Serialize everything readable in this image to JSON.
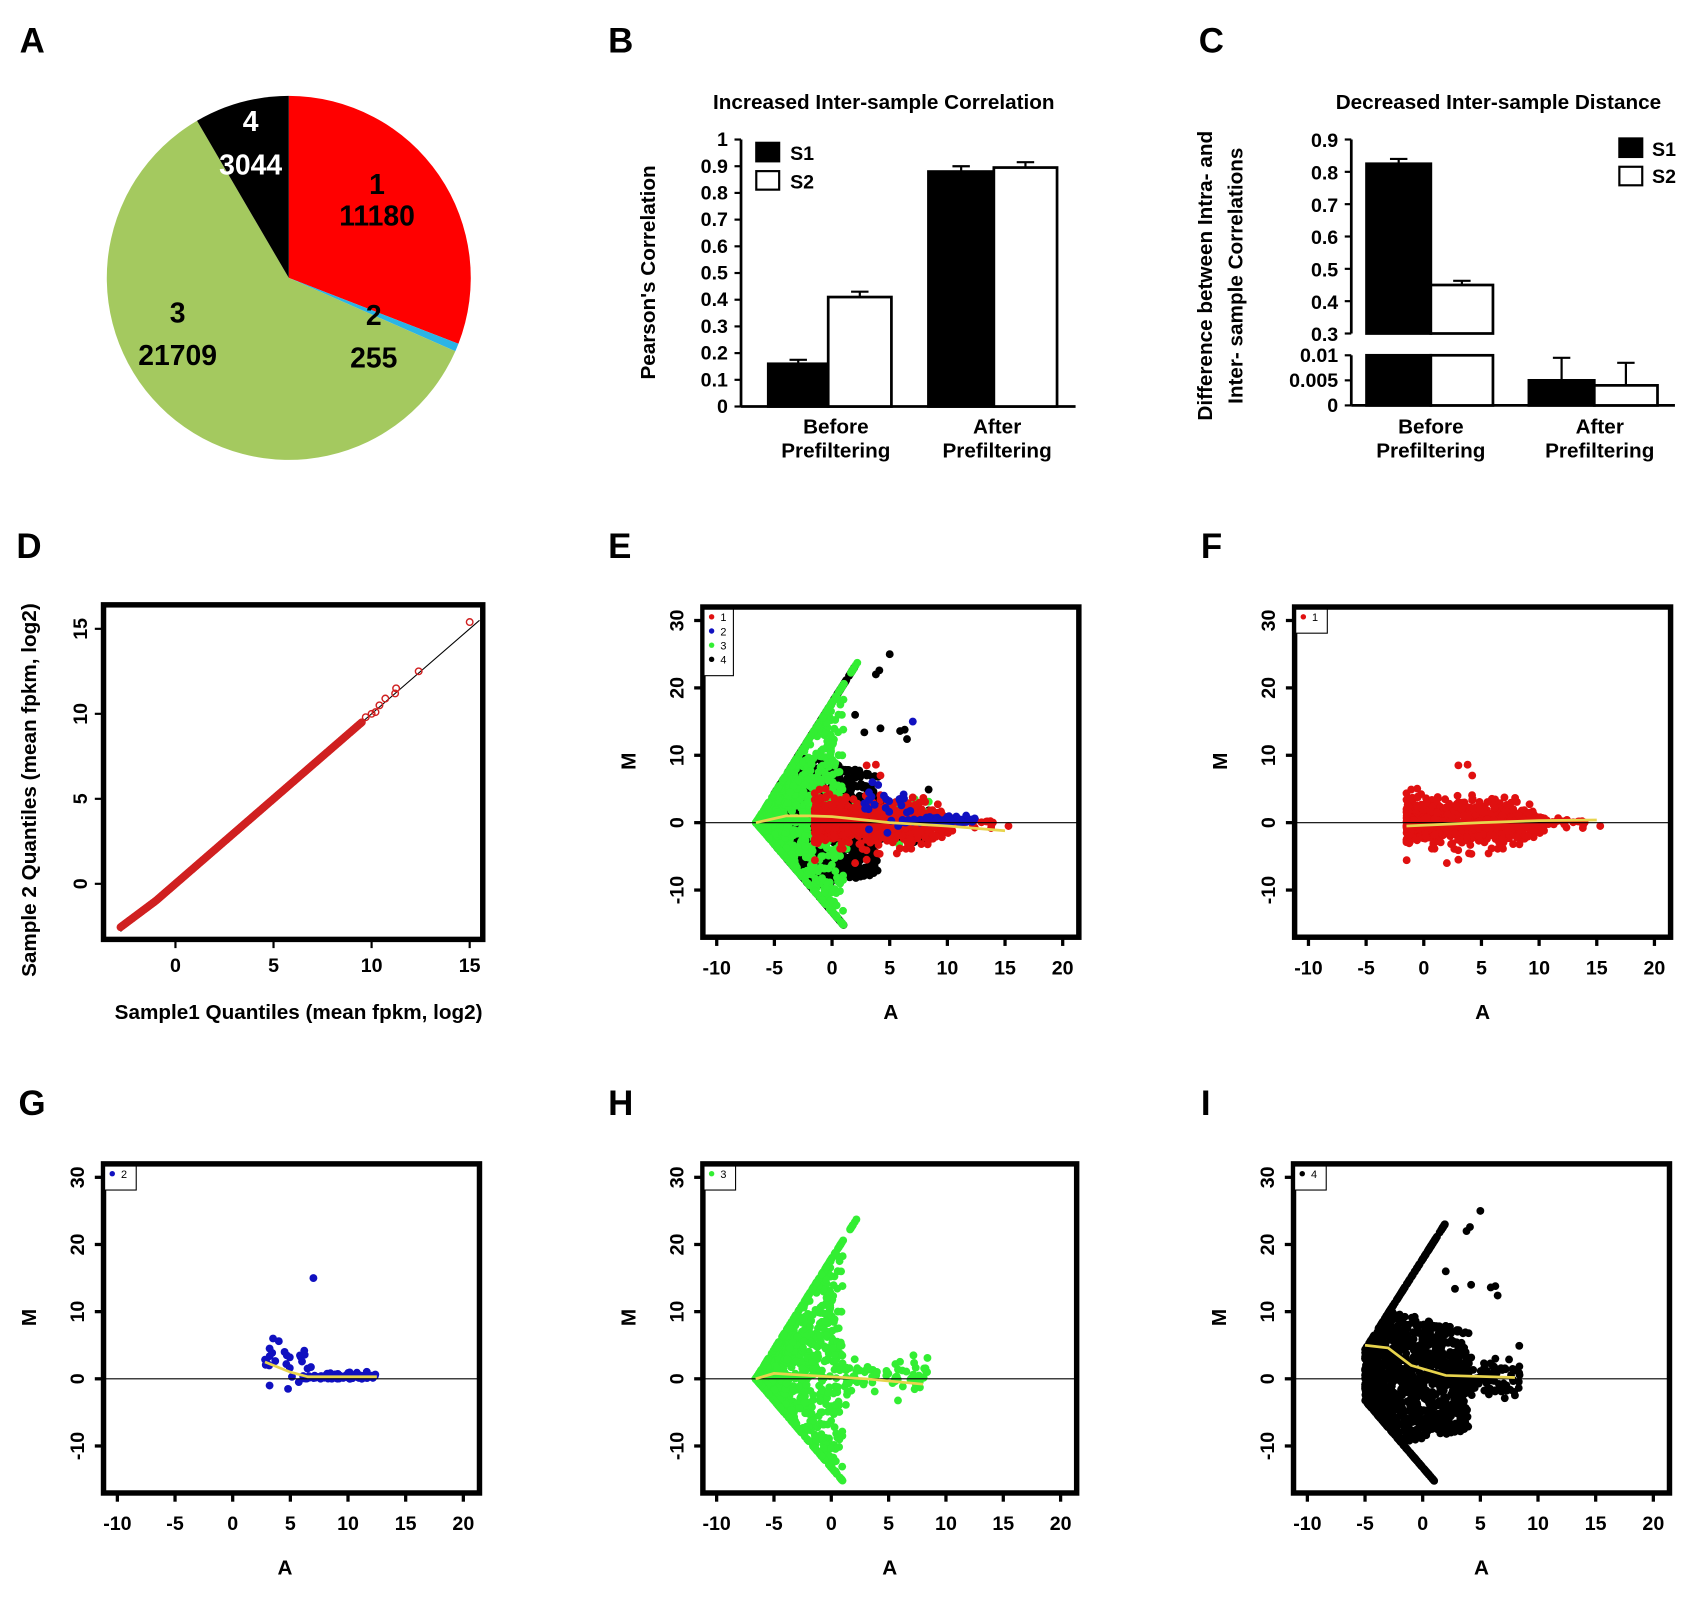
{
  "panel_letters": [
    "A",
    "B",
    "C",
    "D",
    "E",
    "F",
    "G",
    "H",
    "I"
  ],
  "colors": {
    "group1": "#ff0000",
    "group2": "#2ab4e6",
    "group3": "#a4c95f",
    "group4": "#000000",
    "ma1": "#e01010",
    "ma2": "#1010c0",
    "ma3": "#33ee33",
    "ma4": "#000000",
    "loess": "#e8d44d",
    "qq": "#d02020"
  },
  "chart_data": [
    {
      "panel": "A",
      "type": "pie",
      "categories": [
        "1",
        "2",
        "3",
        "4"
      ],
      "values": [
        11180,
        255,
        21709,
        3044
      ],
      "labels": [
        "11180",
        "255",
        "21709",
        "3044"
      ]
    },
    {
      "panel": "B",
      "type": "bar",
      "title": "Increased Inter-sample Correlation",
      "ylabel": "Pearson's Correlation",
      "ylim": [
        0,
        1
      ],
      "yticks": [
        "0",
        "0.1",
        "0.2",
        "0.3",
        "0.4",
        "0.5",
        "0.6",
        "0.7",
        "0.8",
        "0.9",
        "1"
      ],
      "categories": [
        [
          "Before",
          "Prefiltering"
        ],
        [
          "After",
          "Prefiltering"
        ]
      ],
      "series": [
        {
          "name": "S1",
          "values": [
            0.16,
            0.88
          ],
          "errors": [
            0.015,
            0.02
          ]
        },
        {
          "name": "S2",
          "values": [
            0.41,
            0.895
          ],
          "errors": [
            0.02,
            0.02
          ]
        }
      ],
      "legend": "top-left"
    },
    {
      "panel": "C",
      "type": "bar",
      "title": "Decreased Inter-sample Distance",
      "ylabel": [
        "Difference between Intra- and",
        "Inter- sample Correlations"
      ],
      "broken_axis": {
        "lower": [
          0,
          0.01
        ],
        "upper": [
          0.3,
          0.9
        ]
      },
      "yticks_upper": [
        "0.3",
        "0.4",
        "0.5",
        "0.6",
        "0.7",
        "0.8",
        "0.9"
      ],
      "yticks_lower": [
        "0",
        "0.005",
        "0.01"
      ],
      "categories": [
        [
          "Before",
          "Prefiltering"
        ],
        [
          "After",
          "Prefiltering"
        ]
      ],
      "series": [
        {
          "name": "S1",
          "values": [
            0.825,
            0.005
          ],
          "errors": [
            0.015,
            0.0045
          ]
        },
        {
          "name": "S2",
          "values": [
            0.45,
            0.004
          ],
          "errors": [
            0.013,
            0.0045
          ]
        }
      ],
      "legend": "top-right"
    },
    {
      "panel": "D",
      "type": "scatter",
      "xlabel": "Sample1 Quantiles (mean fpkm, log2)",
      "ylabel": "Sample 2 Quantiles (mean fpkm, log2)",
      "xticks": [
        "0",
        "5",
        "10",
        "15"
      ],
      "yticks": [
        "0",
        "5",
        "10",
        "15"
      ],
      "xlim": [
        -3.7,
        15.7
      ],
      "ylim": [
        -3.3,
        16.4
      ],
      "reference_line": [
        [
          -2.8,
          -2.8
        ],
        [
          15.5,
          15.5
        ]
      ],
      "range": [
        -2.8,
        9.5
      ],
      "upper_points": [
        [
          9.7,
          9.8
        ],
        [
          10,
          10
        ],
        [
          10.2,
          10.1
        ],
        [
          10.4,
          10.5
        ],
        [
          10.7,
          10.9
        ],
        [
          11.2,
          11.2
        ],
        [
          11.25,
          11.5
        ],
        [
          12.4,
          12.5
        ],
        [
          15,
          15.4
        ]
      ]
    },
    {
      "panel": "E",
      "type": "scatter",
      "xlabel": "A",
      "ylabel": "M",
      "xticks": [
        "-10",
        "-5",
        "0",
        "5",
        "10",
        "15",
        "20"
      ],
      "yticks": [
        "-10",
        "0",
        "10",
        "20",
        "30"
      ],
      "xlim": [
        -11.2,
        21.4
      ],
      "ylim": [
        -17,
        32
      ],
      "legend": [
        "1",
        "2",
        "3",
        "4"
      ],
      "groups": [
        "1",
        "2",
        "3",
        "4"
      ],
      "trend": [
        [
          -6.6,
          0
        ],
        [
          -4,
          1
        ],
        [
          -2,
          1
        ],
        [
          0,
          0.9
        ],
        [
          5,
          0
        ],
        [
          10,
          -0.5
        ],
        [
          15,
          -1.2
        ]
      ]
    },
    {
      "panel": "F",
      "type": "scatter",
      "xlabel": "A",
      "ylabel": "M",
      "xticks": [
        "-10",
        "-5",
        "0",
        "5",
        "10",
        "15",
        "20"
      ],
      "yticks": [
        "-10",
        "0",
        "10",
        "20",
        "30"
      ],
      "xlim": [
        -11.2,
        21.4
      ],
      "ylim": [
        -17,
        32
      ],
      "legend": [
        "1"
      ],
      "groups": [
        "1"
      ],
      "trend": [
        [
          -1.5,
          -0.5
        ],
        [
          5,
          0
        ],
        [
          10,
          0.3
        ],
        [
          15,
          0.4
        ]
      ]
    },
    {
      "panel": "G",
      "type": "scatter",
      "xlabel": "A",
      "ylabel": "M",
      "xticks": [
        "-10",
        "-5",
        "0",
        "5",
        "10",
        "15",
        "20"
      ],
      "yticks": [
        "-10",
        "0",
        "10",
        "20",
        "30"
      ],
      "xlim": [
        -11.2,
        21.4
      ],
      "ylim": [
        -17,
        32
      ],
      "legend": [
        "2"
      ],
      "groups": [
        "2"
      ],
      "trend": [
        [
          2.8,
          2.5
        ],
        [
          5,
          1
        ],
        [
          6.5,
          0.3
        ],
        [
          12.5,
          0.3
        ]
      ]
    },
    {
      "panel": "H",
      "type": "scatter",
      "xlabel": "A",
      "ylabel": "M",
      "xticks": [
        "-10",
        "-5",
        "0",
        "5",
        "10",
        "15",
        "20"
      ],
      "yticks": [
        "-10",
        "0",
        "10",
        "20",
        "30"
      ],
      "xlim": [
        -11.2,
        21.4
      ],
      "ylim": [
        -17,
        32
      ],
      "legend": [
        "3"
      ],
      "groups": [
        "3"
      ],
      "trend": [
        [
          -6.6,
          0
        ],
        [
          -5,
          0.8
        ],
        [
          -2,
          0.5
        ],
        [
          3,
          0
        ],
        [
          8,
          -0.8
        ]
      ]
    },
    {
      "panel": "I",
      "type": "scatter",
      "xlabel": "A",
      "ylabel": "M",
      "xticks": [
        "-10",
        "-5",
        "0",
        "5",
        "10",
        "15",
        "20"
      ],
      "yticks": [
        "-10",
        "0",
        "10",
        "20",
        "30"
      ],
      "xlim": [
        -11.2,
        21.4
      ],
      "ylim": [
        -17,
        32
      ],
      "legend": [
        "4"
      ],
      "groups": [
        "4"
      ],
      "trend": [
        [
          -5,
          5
        ],
        [
          -3,
          4.6
        ],
        [
          -1,
          2
        ],
        [
          2,
          0.5
        ],
        [
          8,
          0.2
        ]
      ]
    }
  ]
}
